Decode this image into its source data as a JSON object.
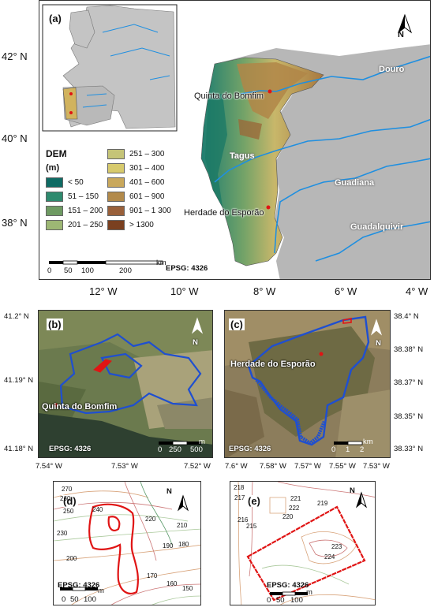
{
  "panel_a": {
    "letter": "(a)",
    "lat_ticks": [
      "42° N",
      "40° N",
      "38° N"
    ],
    "lon_ticks": [
      "12° W",
      "10° W",
      "8° W",
      "6° W",
      "4° W"
    ],
    "places": {
      "bomfim": "Quinta do Bomfim",
      "esporao": "Herdade do Esporão"
    },
    "rivers": {
      "douro": "Douro",
      "tagus": "Tagus",
      "guadiana": "Guadiana",
      "guadalquivir": "Guadalquivir"
    },
    "north": "N",
    "epsg": "EPSG: 4326",
    "scalebar": {
      "unit": "km",
      "labels": [
        "0",
        "50",
        "100",
        "200"
      ]
    },
    "legend": {
      "title": "DEM",
      "unit": "(m)",
      "items": [
        {
          "label": "< 50",
          "color": "#0f6b64"
        },
        {
          "label": "51 – 150",
          "color": "#2e8a6e"
        },
        {
          "label": "151 – 200",
          "color": "#6e9a62"
        },
        {
          "label": "201 – 250",
          "color": "#9db774"
        },
        {
          "label": "251 – 300",
          "color": "#c5c477"
        },
        {
          "label": "301 – 400",
          "color": "#d7ca6d"
        },
        {
          "label": "401 – 600",
          "color": "#c9a85c"
        },
        {
          "label": "601 – 900",
          "color": "#b28a4b"
        },
        {
          "label": "901 – 1 300",
          "color": "#99603a"
        },
        {
          "label": "> 1300",
          "color": "#7a4020"
        }
      ]
    }
  },
  "panel_b": {
    "letter": "(b)",
    "lat_ticks": [
      "41.2° N",
      "41.19° N",
      "41.18° N"
    ],
    "lon_ticks": [
      "7.54° W",
      "7.53° W",
      "7.52° W"
    ],
    "place": "Quinta do Bomfim",
    "epsg": "EPSG: 4326",
    "north": "N",
    "scalebar": {
      "unit": "m",
      "labels": [
        "0",
        "250",
        "500"
      ]
    }
  },
  "panel_c": {
    "letter": "(c)",
    "lat_ticks": [
      "38.4° N",
      "38.38° N",
      "38.37° N",
      "38.35° N",
      "38.33° N"
    ],
    "lon_ticks": [
      "7.6° W",
      "7.58° W",
      "7.57° W",
      "7.55° W",
      "7.53° W"
    ],
    "place": "Herdade do Esporão",
    "epsg": "EPSG: 4326",
    "north": "N",
    "scalebar": {
      "unit": "km",
      "labels": [
        "0",
        "1",
        "2"
      ]
    }
  },
  "panel_d": {
    "letter": "(d)",
    "contours": [
      "270",
      "260",
      "250",
      "240",
      "230",
      "220",
      "210",
      "200",
      "190",
      "180",
      "170",
      "160",
      "150"
    ],
    "epsg": "EPSG: 4326",
    "north": "N",
    "scalebar": {
      "unit": "m",
      "labels": [
        "0",
        "50",
        "100"
      ]
    }
  },
  "panel_e": {
    "letter": "(e)",
    "contours": [
      "218",
      "217",
      "216",
      "215",
      "221",
      "222",
      "219",
      "220",
      "223",
      "224"
    ],
    "epsg": "EPSG: 4326",
    "north": "N",
    "scalebar": {
      "unit": "m",
      "labels": [
        "0",
        "50",
        "100"
      ]
    }
  },
  "colors": {
    "river": "#1f8fe0",
    "boundary": "#1f4fd0",
    "plot": "#e01414",
    "sea": "#ffffff",
    "land": "#bdbdbd"
  }
}
